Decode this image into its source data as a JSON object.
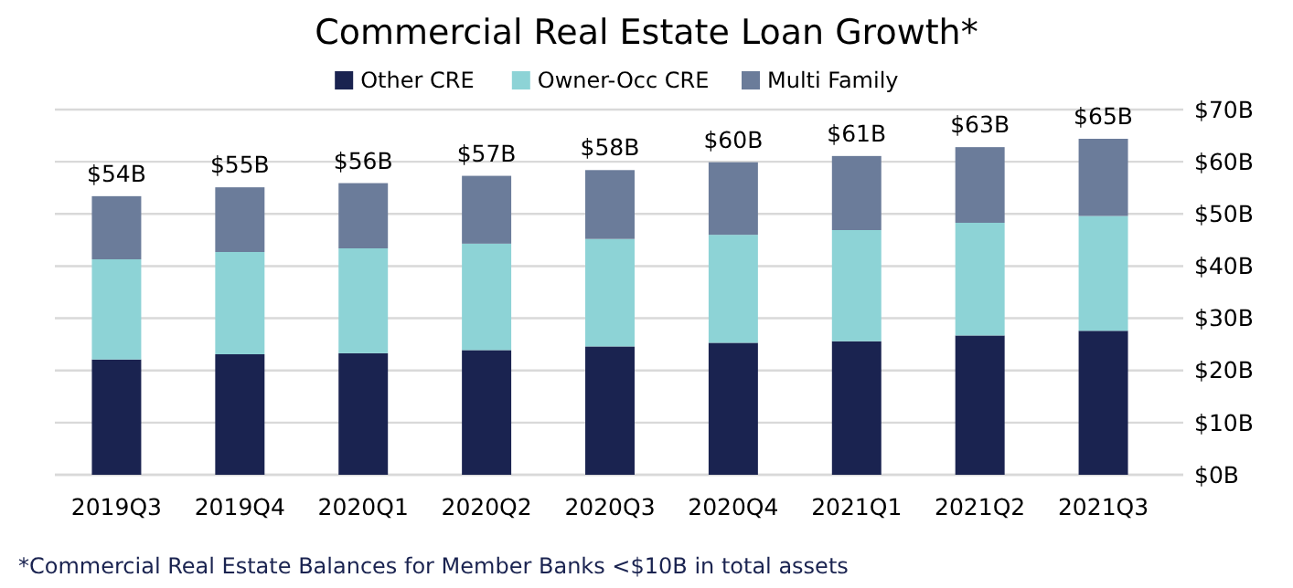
{
  "chart_data": {
    "type": "bar",
    "title": "Commercial Real Estate Loan Growth*",
    "stacked": true,
    "categories": [
      "2019Q3",
      "2019Q4",
      "2020Q1",
      "2020Q2",
      "2020Q3",
      "2020Q4",
      "2021Q1",
      "2021Q2",
      "2021Q3"
    ],
    "series": [
      {
        "name": "Other CRE",
        "color": "#1a2350",
        "values": [
          22.1,
          23.1,
          23.3,
          23.9,
          24.6,
          25.3,
          25.6,
          26.7,
          27.6
        ]
      },
      {
        "name": "Owner-Occ CRE",
        "color": "#8dd3d6",
        "values": [
          19.2,
          19.6,
          20.1,
          20.4,
          20.6,
          20.7,
          21.3,
          21.6,
          22.0
        ]
      },
      {
        "name": "Multi Family",
        "color": "#6b7c9a",
        "values": [
          12.1,
          12.4,
          12.5,
          13.0,
          13.2,
          13.9,
          14.2,
          14.5,
          14.8
        ]
      }
    ],
    "totals": [
      "$54B",
      "$55B",
      "$56B",
      "$57B",
      "$58B",
      "$60B",
      "$61B",
      "$63B",
      "$65B"
    ],
    "ylim": [
      0,
      70
    ],
    "yticks": [
      {
        "value": 0,
        "label": "$0B"
      },
      {
        "value": 10,
        "label": "$10B"
      },
      {
        "value": 20,
        "label": "$20B"
      },
      {
        "value": 30,
        "label": "$30B"
      },
      {
        "value": 40,
        "label": "$40B"
      },
      {
        "value": 50,
        "label": "$50B"
      },
      {
        "value": 60,
        "label": "$60B"
      },
      {
        "value": 70,
        "label": "$70B"
      }
    ],
    "grid": "y",
    "legend": "top",
    "annotations": [
      "*Commercial Real Estate Balances for Member Banks <$10B in total assets"
    ]
  }
}
